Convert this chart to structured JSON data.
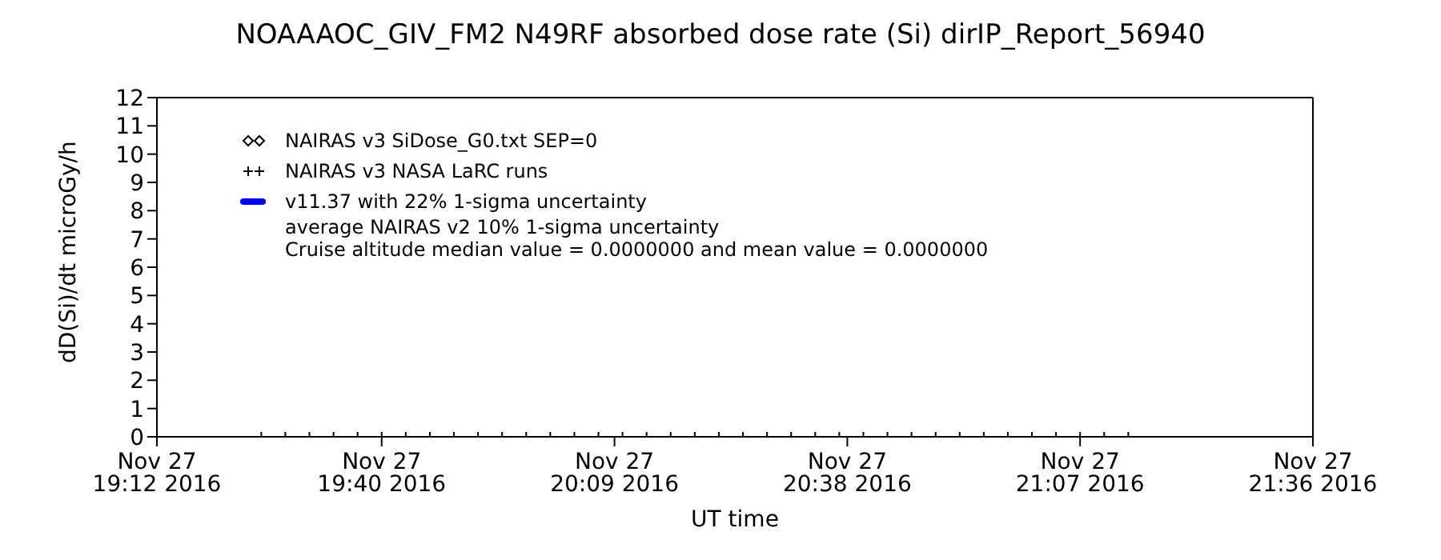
{
  "chart_data": {
    "type": "scatter",
    "title": "NOAAAOC_GIV_FM2   N49RF  absorbed dose rate (Si) dirIP_Report_56940",
    "xlabel": "UT time",
    "ylabel": "dD(Si)/dt microGy/h",
    "x": [
      "2016-11-27T19:25",
      "2016-11-27T19:28",
      "2016-11-27T19:31",
      "2016-11-27T19:34",
      "2016-11-27T19:37",
      "2016-11-27T19:40",
      "2016-11-27T19:43",
      "2016-11-27T19:46",
      "2016-11-27T19:49",
      "2016-11-27T19:52",
      "2016-11-27T19:55",
      "2016-11-27T19:58",
      "2016-11-27T20:01",
      "2016-11-27T20:04",
      "2016-11-27T20:07",
      "2016-11-27T20:10",
      "2016-11-27T20:13",
      "2016-11-27T20:16",
      "2016-11-27T20:19",
      "2016-11-27T20:22",
      "2016-11-27T20:25",
      "2016-11-27T20:28",
      "2016-11-27T20:31",
      "2016-11-27T20:34",
      "2016-11-27T20:37",
      "2016-11-27T20:40",
      "2016-11-27T20:43",
      "2016-11-27T20:46",
      "2016-11-27T20:49",
      "2016-11-27T20:52",
      "2016-11-27T20:55",
      "2016-11-27T20:58",
      "2016-11-27T21:01",
      "2016-11-27T21:04",
      "2016-11-27T21:07",
      "2016-11-27T21:10",
      "2016-11-27T21:13"
    ],
    "series": [
      {
        "name": "NAIRAS v3 SiDose_G0.txt SEP=0",
        "color": "#000000",
        "marker": "diamond",
        "values": [
          null,
          null,
          null,
          null,
          null,
          null,
          null,
          null,
          null,
          null,
          null,
          null,
          null,
          null,
          null,
          null,
          null,
          null,
          null,
          null,
          null,
          null,
          null,
          null,
          null,
          null,
          null,
          null,
          null,
          null,
          null,
          null,
          null,
          null,
          null,
          null,
          null
        ]
      },
      {
        "name": "NAIRAS v3 NASA LaRC runs",
        "color": "#000000",
        "marker": "cross",
        "values": [
          0,
          0,
          0,
          0,
          0,
          0,
          0,
          0,
          0,
          0,
          0,
          0,
          0,
          0,
          0,
          0,
          0,
          0,
          0,
          0,
          0,
          0,
          0,
          0,
          0,
          0,
          0,
          0,
          0,
          0,
          0,
          0,
          0,
          0,
          0,
          0,
          0
        ]
      },
      {
        "name": "v11.37 with 22% 1-sigma uncertainty",
        "type": "line",
        "color": "#0000ff",
        "values": [
          null,
          null,
          null,
          null,
          null,
          null,
          null,
          null,
          null,
          null,
          null,
          null,
          null,
          null,
          null,
          null,
          null,
          null,
          null,
          null,
          null,
          null,
          null,
          null,
          null,
          null,
          null,
          null,
          null,
          null,
          null,
          null,
          null,
          null,
          null,
          null,
          null
        ]
      }
    ],
    "annotations": [
      "average NAIRAS v2 10% 1-sigma uncertainty",
      "Cruise altitude median value = 0.0000000 and mean value = 0.0000000"
    ],
    "xlim": [
      "2016-11-27T19:12",
      "2016-11-27T21:36"
    ],
    "xticks": [
      {
        "value": "2016-11-27T19:12",
        "label": "Nov 27\n19:12 2016"
      },
      {
        "value": "2016-11-27T19:40",
        "label": "Nov 27\n19:40 2016"
      },
      {
        "value": "2016-11-27T20:09",
        "label": "Nov 27\n20:09 2016"
      },
      {
        "value": "2016-11-27T20:38",
        "label": "Nov 27\n20:38 2016"
      },
      {
        "value": "2016-11-27T21:07",
        "label": "Nov 27\n21:07 2016"
      },
      {
        "value": "2016-11-27T21:36",
        "label": "Nov 27\n21:36 2016"
      }
    ],
    "ylim": [
      0,
      12
    ],
    "yticks": [
      0,
      1,
      2,
      3,
      4,
      5,
      6,
      7,
      8,
      9,
      10,
      11,
      12
    ],
    "grid": false,
    "legend": "top left"
  }
}
